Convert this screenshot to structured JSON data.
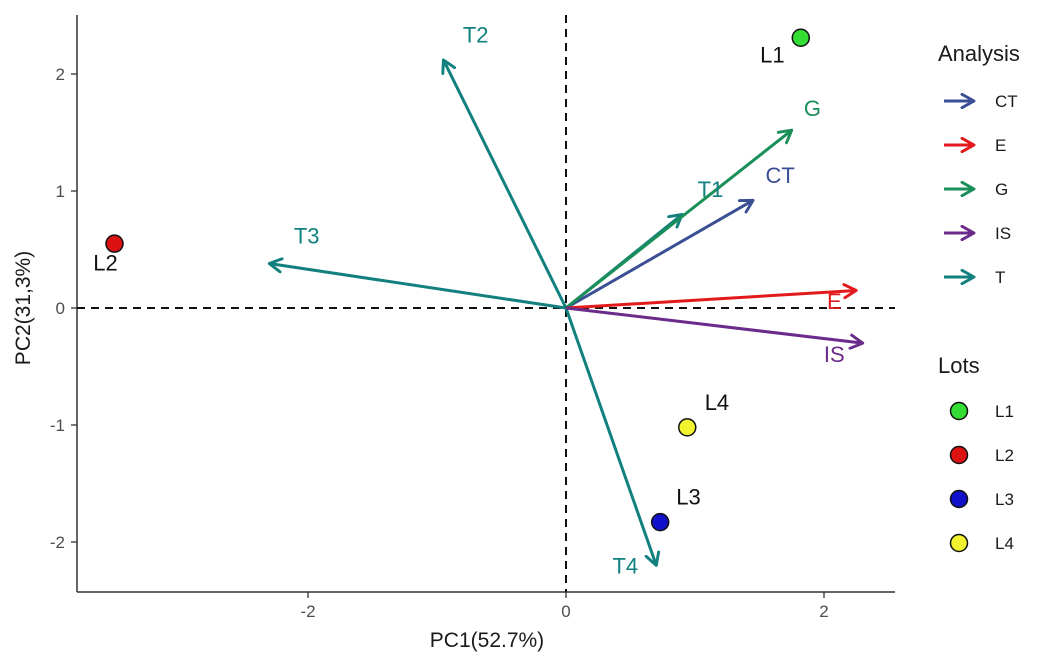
{
  "chart_data": {
    "type": "scatter",
    "subtype": "pca-biplot",
    "xlabel": "PC1(52.7%)",
    "ylabel": "PC2(31,3%)",
    "xlim": [
      -3.5,
      2.55
    ],
    "ylim": [
      -2.4,
      2.5
    ],
    "xticks": [
      -2,
      0,
      2
    ],
    "yticks": [
      -2,
      -1,
      0,
      1,
      2
    ],
    "grid": false,
    "reference_lines": {
      "x": 0,
      "y": 0,
      "style": "dashed"
    },
    "vectors": [
      {
        "name": "T2",
        "group": "T",
        "x": -0.95,
        "y": 2.12,
        "label_x": -0.7,
        "label_y": 2.27
      },
      {
        "name": "T3",
        "group": "T",
        "x": -2.3,
        "y": 0.38,
        "label_x": -2.01,
        "label_y": 0.55
      },
      {
        "name": "T1",
        "group": "T",
        "x": 0.9,
        "y": 0.8,
        "label_x": 1.12,
        "label_y": 0.95
      },
      {
        "name": "T4",
        "group": "T",
        "x": 0.7,
        "y": -2.2,
        "label_x": 0.46,
        "label_y": -2.27
      },
      {
        "name": "CT",
        "group": "CT",
        "x": 1.45,
        "y": 0.92,
        "label_x": 1.66,
        "label_y": 1.07
      },
      {
        "name": "G",
        "group": "G",
        "x": 1.75,
        "y": 1.52,
        "label_x": 1.91,
        "label_y": 1.64
      },
      {
        "name": "E",
        "group": "E",
        "x": 2.25,
        "y": 0.15,
        "label_x": 2.08,
        "label_y": -0.01
      },
      {
        "name": "IS",
        "group": "IS",
        "x": 2.3,
        "y": -0.3,
        "label_x": 2.08,
        "label_y": -0.46
      }
    ],
    "points": [
      {
        "name": "L1",
        "x": 1.82,
        "y": 2.31,
        "label_x": 1.6,
        "label_y": 2.1
      },
      {
        "name": "L2",
        "x": -3.5,
        "y": 0.55,
        "label_x": -3.57,
        "label_y": 0.32
      },
      {
        "name": "L3",
        "x": 0.73,
        "y": -1.83,
        "label_x": 0.95,
        "label_y": -1.68
      },
      {
        "name": "L4",
        "x": 0.94,
        "y": -1.02,
        "label_x": 1.17,
        "label_y": -0.87
      }
    ],
    "legend": {
      "placement": "right",
      "analysis": {
        "title": "Analysis",
        "items": [
          {
            "name": "CT",
            "color": "#3b4f94"
          },
          {
            "name": "E",
            "color": "#e31a1c"
          },
          {
            "name": "G",
            "color": "#1b8f5a"
          },
          {
            "name": "IS",
            "color": "#6a2b8a"
          },
          {
            "name": "T",
            "color": "#11807e"
          }
        ]
      },
      "lots": {
        "title": "Lots",
        "items": [
          {
            "name": "L1",
            "color": "#33dd33"
          },
          {
            "name": "L2",
            "color": "#dd1111"
          },
          {
            "name": "L3",
            "color": "#1111cc"
          },
          {
            "name": "L4",
            "color": "#f2f22e"
          }
        ]
      }
    }
  }
}
